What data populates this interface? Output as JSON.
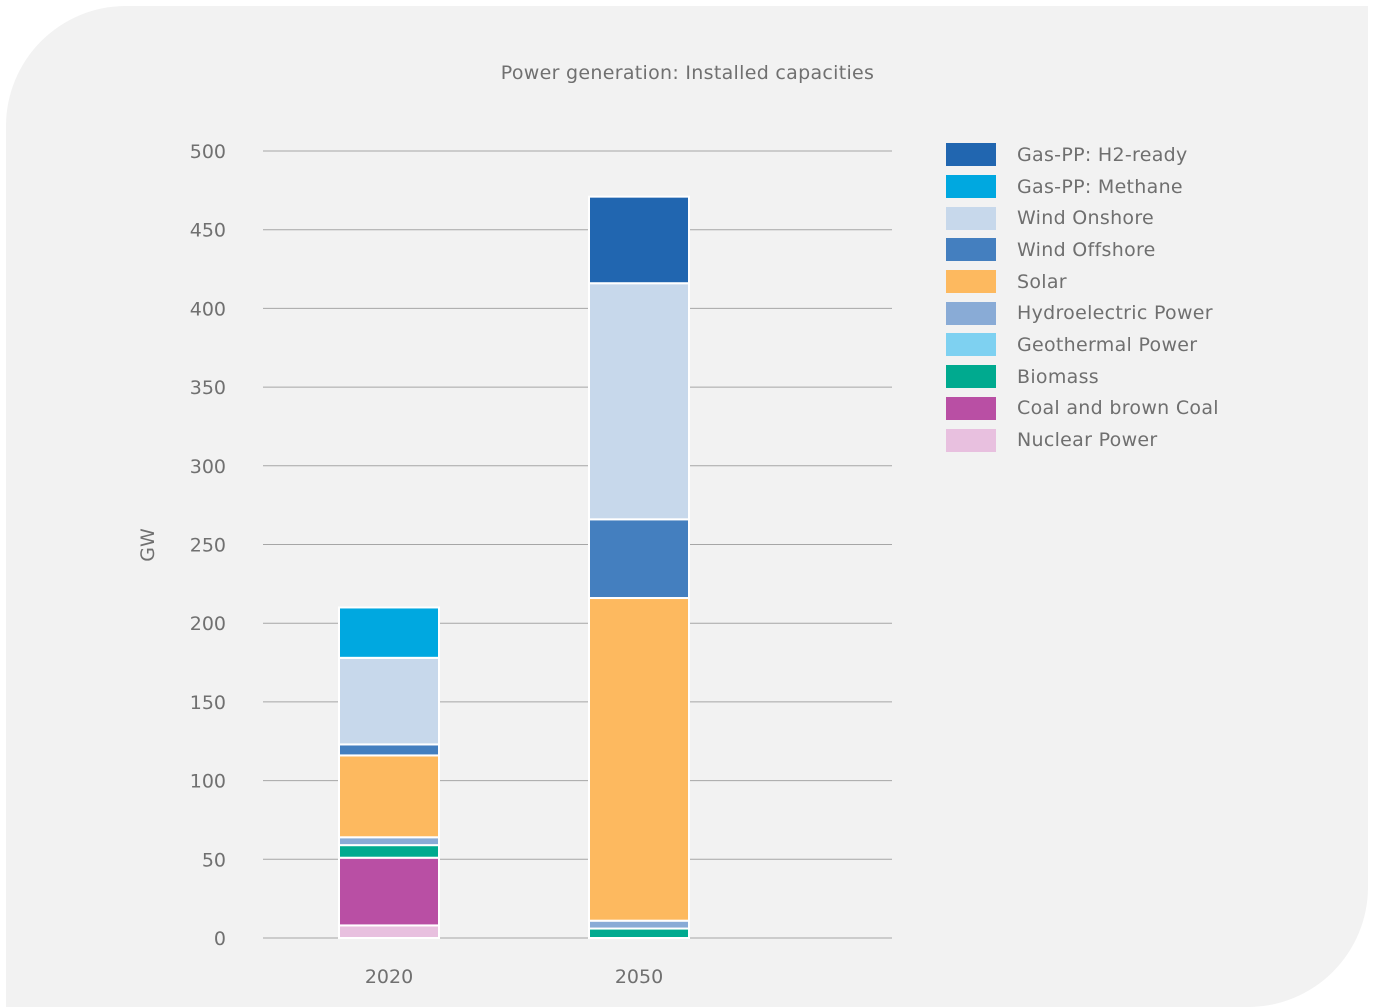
{
  "chart_data": {
    "type": "bar",
    "stacked": true,
    "title": "Power generation: Installed capacities",
    "xlabel": "",
    "ylabel": "GW",
    "ylim": [
      0,
      500
    ],
    "yticks": [
      0,
      50,
      100,
      150,
      200,
      250,
      300,
      350,
      400,
      450,
      500
    ],
    "categories": [
      "2020",
      "2050"
    ],
    "grid": true,
    "legend_position": "right",
    "series": [
      {
        "name": "Nuclear Power",
        "color": "#e8c0df",
        "values": [
          8,
          0
        ]
      },
      {
        "name": "Coal and brown Coal",
        "color": "#b94fa4",
        "values": [
          43,
          0
        ]
      },
      {
        "name": "Biomass",
        "color": "#00aa8f",
        "values": [
          8,
          6
        ]
      },
      {
        "name": "Geothermal Power",
        "color": "#7ed1f1",
        "values": [
          0,
          0
        ]
      },
      {
        "name": "Hydroelectric Power",
        "color": "#89abd6",
        "values": [
          5,
          5
        ]
      },
      {
        "name": "Solar",
        "color": "#fdb95f",
        "values": [
          52,
          205
        ]
      },
      {
        "name": "Wind Offshore",
        "color": "#447fbf",
        "values": [
          7,
          50
        ]
      },
      {
        "name": "Wind Onshore",
        "color": "#c7d8eb",
        "values": [
          55,
          150
        ]
      },
      {
        "name": "Gas-PP: Methane",
        "color": "#00a8e0",
        "values": [
          32,
          0
        ]
      },
      {
        "name": "Gas-PP: H2-ready",
        "color": "#2166b0",
        "values": [
          0,
          55
        ]
      }
    ]
  }
}
